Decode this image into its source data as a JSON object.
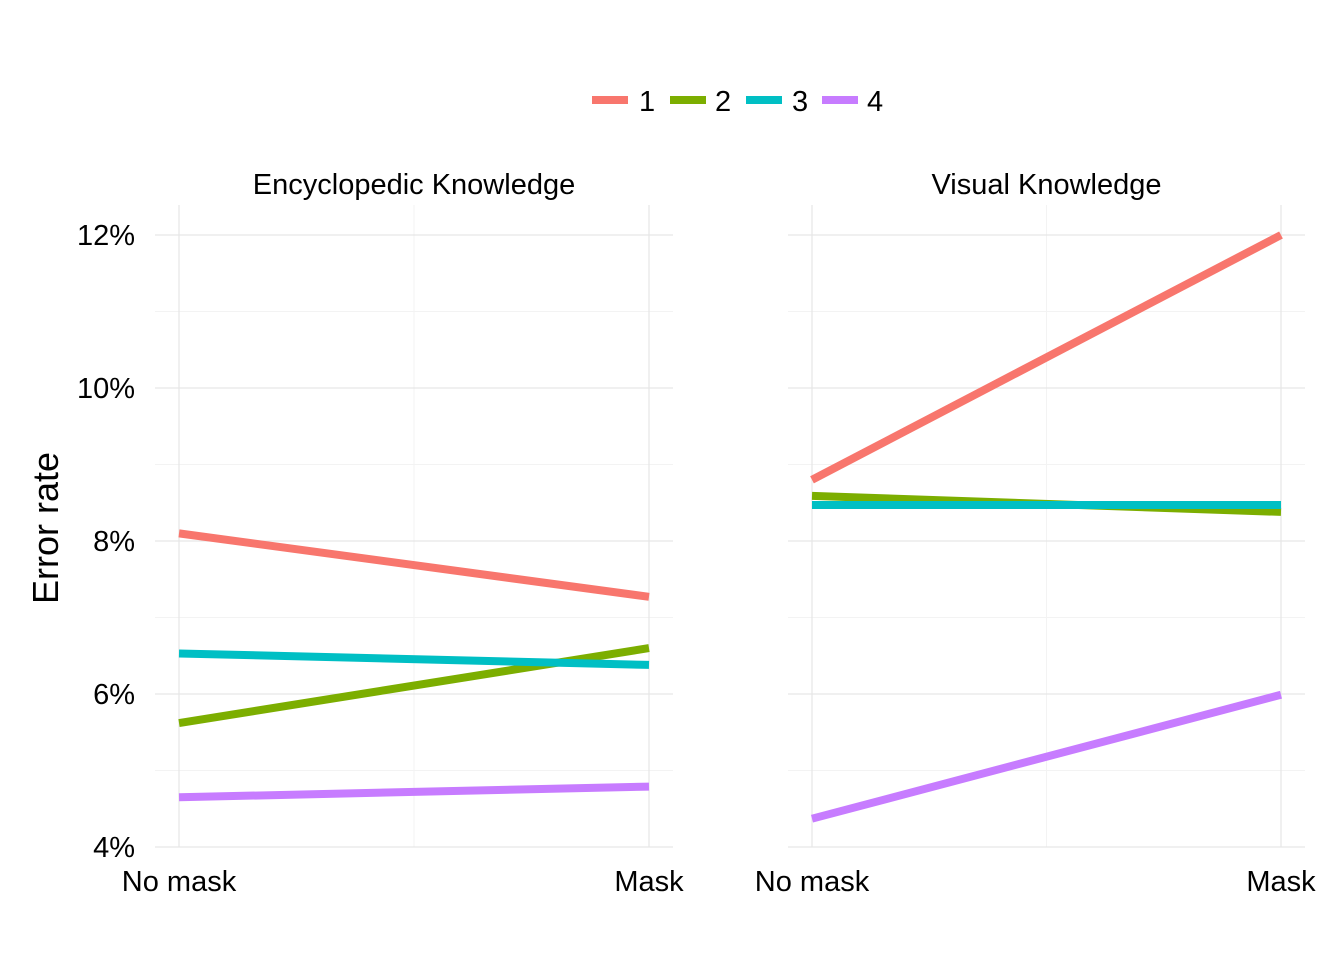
{
  "chart_data": {
    "type": "line",
    "ylabel": "Error rate",
    "ylim": [
      4,
      12
    ],
    "y_ticks": [
      4,
      6,
      8,
      10,
      12
    ],
    "y_tick_labels": [
      "4%",
      "6%",
      "8%",
      "10%",
      "12%"
    ],
    "categories": [
      "No mask",
      "Mask"
    ],
    "legend_position": "top",
    "legend": [
      {
        "label": "1",
        "color": "#F8766D"
      },
      {
        "label": "2",
        "color": "#7CAE00"
      },
      {
        "label": "3",
        "color": "#00BFC4"
      },
      {
        "label": "4",
        "color": "#C77CFF"
      }
    ],
    "grid": true,
    "panels": [
      {
        "title": "Encyclopedic Knowledge",
        "series": [
          {
            "name": "1",
            "values": [
              8.1,
              7.27
            ]
          },
          {
            "name": "2",
            "values": [
              5.62,
              6.6
            ]
          },
          {
            "name": "3",
            "values": [
              6.53,
              6.38
            ]
          },
          {
            "name": "4",
            "values": [
              4.65,
              4.79
            ]
          }
        ]
      },
      {
        "title": "Visual Knowledge",
        "series": [
          {
            "name": "1",
            "values": [
              8.8,
              12.0
            ]
          },
          {
            "name": "2",
            "values": [
              8.59,
              8.38
            ]
          },
          {
            "name": "3",
            "values": [
              8.47,
              8.47
            ]
          },
          {
            "name": "4",
            "values": [
              4.37,
              5.99
            ]
          }
        ]
      }
    ]
  }
}
